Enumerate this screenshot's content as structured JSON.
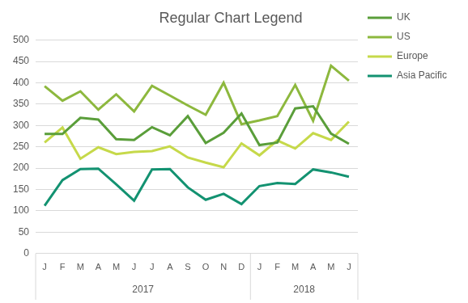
{
  "chart_data": {
    "type": "line",
    "title": "Regular Chart Legend",
    "categories": [
      "J",
      "F",
      "M",
      "A",
      "M",
      "J",
      "J",
      "A",
      "S",
      "O",
      "N",
      "D",
      "J",
      "F",
      "M",
      "A",
      "M",
      "J"
    ],
    "category_groups": [
      {
        "label": "2017",
        "count": 12
      },
      {
        "label": "2018",
        "count": 6
      }
    ],
    "series": [
      {
        "name": "UK",
        "color": "#5a9e3a",
        "values": [
          280,
          280,
          318,
          314,
          268,
          266,
          296,
          277,
          322,
          259,
          283,
          328,
          254,
          260,
          340,
          345,
          281,
          257
        ]
      },
      {
        "name": "US",
        "color": "#8db83e",
        "values": [
          392,
          358,
          380,
          337,
          373,
          333,
          393,
          370,
          347,
          325,
          400,
          303,
          312,
          322,
          395,
          311,
          440,
          405
        ]
      },
      {
        "name": "Europe",
        "color": "#c6d94a",
        "values": [
          260,
          295,
          222,
          249,
          233,
          238,
          240,
          251,
          225,
          213,
          202,
          258,
          230,
          265,
          246,
          282,
          266,
          309
        ]
      },
      {
        "name": "Asia Pacific",
        "color": "#139271",
        "values": [
          112,
          172,
          198,
          199,
          162,
          124,
          197,
          198,
          155,
          126,
          140,
          116,
          158,
          165,
          163,
          197,
          190,
          180
        ]
      }
    ],
    "ylim": [
      0,
      500
    ],
    "yticks": [
      0,
      50,
      100,
      150,
      200,
      250,
      300,
      350,
      400,
      450,
      500
    ],
    "grid": true,
    "legend": "right",
    "marker": "none"
  }
}
